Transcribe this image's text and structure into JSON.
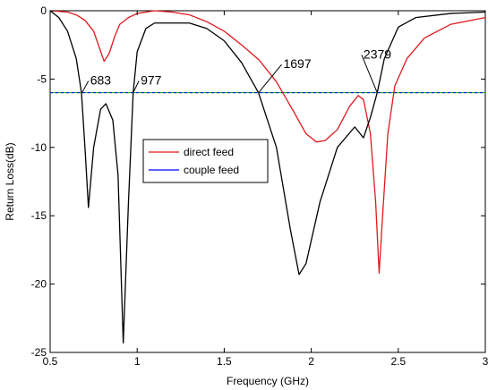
{
  "chart_data": {
    "type": "line",
    "xlabel": "Frequency (GHz)",
    "ylabel": "Return Loss(dB)",
    "xlim": [
      0.5,
      3
    ],
    "ylim": [
      -25,
      0
    ],
    "xticks": [
      0.5,
      1,
      1.5,
      2,
      2.5,
      3
    ],
    "xtick_labels": [
      "0.5",
      "1",
      "1.5",
      "2",
      "2.5",
      "3"
    ],
    "yticks": [
      0,
      -5,
      -10,
      -15,
      -20,
      -25
    ],
    "ytick_labels": [
      "0",
      "-5",
      "-10",
      "-15",
      "-20",
      "-25"
    ],
    "grid": false,
    "legend_position": "middle-left",
    "reference_line": {
      "y": -6,
      "colors": [
        "#00aa00",
        "#0000ff"
      ]
    },
    "series": [
      {
        "name": "direct feed",
        "color": "#e0191e",
        "points": [
          [
            0.5,
            0
          ],
          [
            0.6,
            -0.1
          ],
          [
            0.65,
            -0.3
          ],
          [
            0.7,
            -0.7
          ],
          [
            0.75,
            -1.5
          ],
          [
            0.78,
            -2.6
          ],
          [
            0.81,
            -3.7
          ],
          [
            0.84,
            -3.1
          ],
          [
            0.87,
            -1.9
          ],
          [
            0.9,
            -1.0
          ],
          [
            0.95,
            -0.5
          ],
          [
            1.0,
            -0.2
          ],
          [
            1.1,
            0
          ],
          [
            1.2,
            -0.1
          ],
          [
            1.3,
            -0.3
          ],
          [
            1.4,
            -0.8
          ],
          [
            1.5,
            -1.5
          ],
          [
            1.6,
            -2.5
          ],
          [
            1.7,
            -3.6
          ],
          [
            1.8,
            -5.2
          ],
          [
            1.9,
            -7.4
          ],
          [
            1.97,
            -9.0
          ],
          [
            2.03,
            -9.6
          ],
          [
            2.08,
            -9.5
          ],
          [
            2.15,
            -8.7
          ],
          [
            2.22,
            -7.0
          ],
          [
            2.27,
            -6.2
          ],
          [
            2.3,
            -6.5
          ],
          [
            2.34,
            -9.0
          ],
          [
            2.37,
            -14.0
          ],
          [
            2.39,
            -19.2
          ],
          [
            2.41,
            -15.0
          ],
          [
            2.44,
            -9.0
          ],
          [
            2.48,
            -5.5
          ],
          [
            2.55,
            -3.5
          ],
          [
            2.65,
            -2.0
          ],
          [
            2.8,
            -1.0
          ],
          [
            3.0,
            -0.5
          ]
        ]
      },
      {
        "name": "couple feed",
        "color": "#0000ff",
        "points": []
      },
      {
        "name": "",
        "color": "#000000",
        "points": [
          [
            0.5,
            0
          ],
          [
            0.55,
            -0.5
          ],
          [
            0.6,
            -1.5
          ],
          [
            0.65,
            -3.5
          ],
          [
            0.68,
            -6.0
          ],
          [
            0.7,
            -10.0
          ],
          [
            0.72,
            -14.4
          ],
          [
            0.75,
            -10.0
          ],
          [
            0.79,
            -7.2
          ],
          [
            0.82,
            -6.8
          ],
          [
            0.86,
            -8.0
          ],
          [
            0.89,
            -12.0
          ],
          [
            0.92,
            -24.3
          ],
          [
            0.95,
            -14.0
          ],
          [
            0.977,
            -6.0
          ],
          [
            1.0,
            -3.0
          ],
          [
            1.05,
            -1.3
          ],
          [
            1.1,
            -0.9
          ],
          [
            1.3,
            -0.9
          ],
          [
            1.4,
            -1.3
          ],
          [
            1.5,
            -2.2
          ],
          [
            1.6,
            -3.8
          ],
          [
            1.697,
            -6.0
          ],
          [
            1.8,
            -10.0
          ],
          [
            1.88,
            -16.0
          ],
          [
            1.93,
            -19.3
          ],
          [
            1.97,
            -18.5
          ],
          [
            2.05,
            -14.0
          ],
          [
            2.15,
            -10.0
          ],
          [
            2.25,
            -8.5
          ],
          [
            2.3,
            -9.3
          ],
          [
            2.34,
            -7.8
          ],
          [
            2.379,
            -6.0
          ],
          [
            2.42,
            -3.5
          ],
          [
            2.5,
            -1.2
          ],
          [
            2.6,
            -0.5
          ],
          [
            2.8,
            -0.2
          ],
          [
            3.0,
            -0.1
          ]
        ]
      }
    ],
    "annotations": [
      {
        "text": "683",
        "x": 0.683,
        "y": -6,
        "label_x": 0.73,
        "label_y": -5.4
      },
      {
        "text": "977",
        "x": 0.977,
        "y": -6,
        "label_x": 1.02,
        "label_y": -5.4
      },
      {
        "text": "1697",
        "x": 1.697,
        "y": -6,
        "label_x": 1.84,
        "label_y": -4.2
      },
      {
        "text": "2379",
        "x": 2.379,
        "y": -6,
        "label_x": 2.3,
        "label_y": -3.5
      }
    ]
  }
}
